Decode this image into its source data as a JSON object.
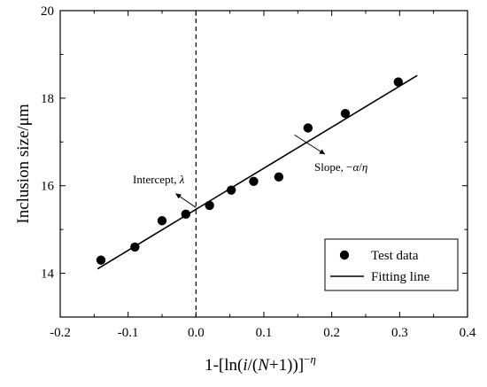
{
  "chart_data": {
    "type": "scatter",
    "title": "",
    "xlabel": "1-[ln(i/(N+1))]^−η",
    "ylabel": "Inclusion size/μm",
    "xlim": [
      -0.2,
      0.4
    ],
    "ylim": [
      13,
      20
    ],
    "x_ticks": [
      "-0.2",
      "-0.1",
      "0.0",
      "0.1",
      "0.2",
      "0.3",
      "0.4"
    ],
    "y_ticks": [
      "14",
      "16",
      "18",
      "20"
    ],
    "grid": false,
    "legend_position": "bottom-right",
    "series": [
      {
        "name": "Test data",
        "kind": "points",
        "color": "#000000",
        "x": [
          -0.14,
          -0.09,
          -0.05,
          -0.015,
          0.02,
          0.052,
          0.085,
          0.122,
          0.165,
          0.22,
          0.298
        ],
        "y": [
          14.3,
          14.6,
          15.2,
          15.35,
          15.55,
          15.9,
          16.1,
          16.2,
          17.32,
          17.65,
          18.37
        ]
      },
      {
        "name": "Fitting line",
        "kind": "line",
        "color": "#000000",
        "x": [
          -0.145,
          0.326
        ],
        "y": [
          14.1,
          18.52
        ]
      }
    ],
    "reference_lines": [
      {
        "kind": "vertical",
        "style": "dashed",
        "x": 0.0
      }
    ],
    "annotations": [
      {
        "id": "intercept",
        "text": "Intercept, λ",
        "arrow_from": [
          0.0,
          15.5
        ],
        "arrow_to": [
          -0.03,
          15.82
        ]
      },
      {
        "id": "slope",
        "text": "Slope, −α/η",
        "arrow_from": [
          0.145,
          17.16
        ],
        "arrow_to": [
          0.19,
          16.72
        ]
      }
    ]
  }
}
